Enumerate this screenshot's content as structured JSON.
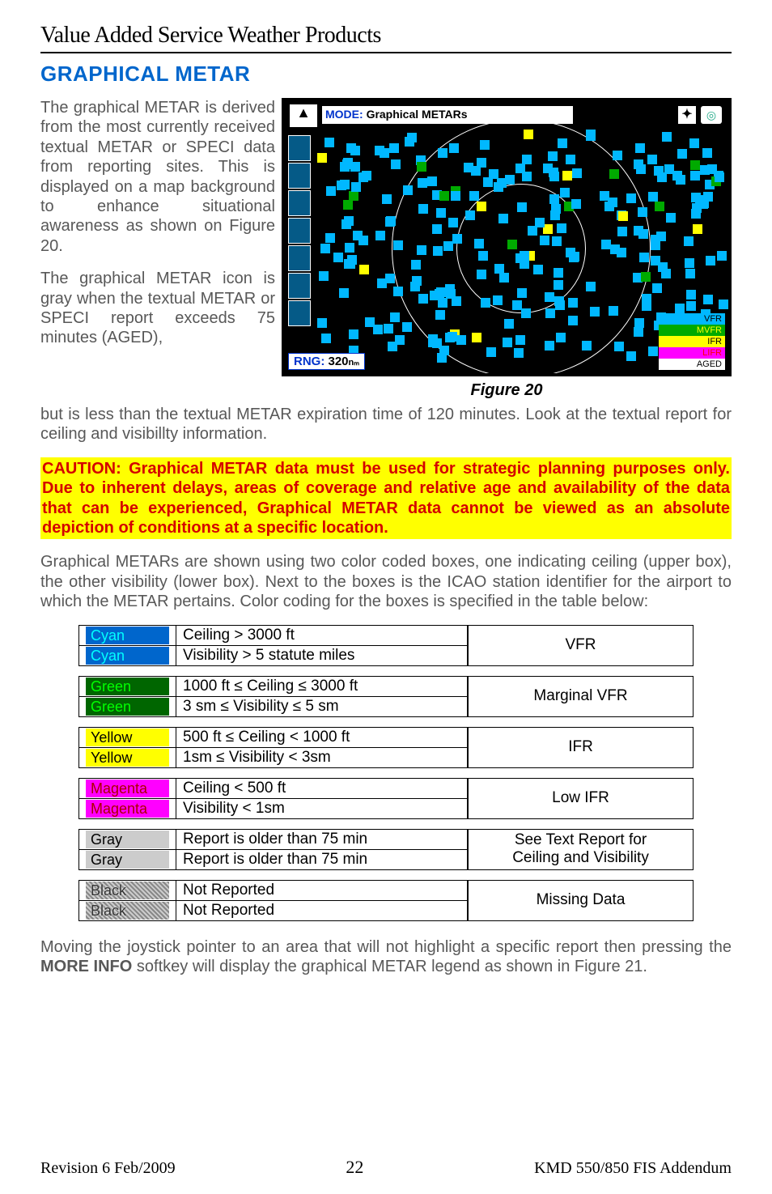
{
  "header": {
    "title": "Value Added Service Weather Products"
  },
  "section": {
    "title": "GRAPHICAL METAR"
  },
  "para1": "The graphical METAR is derived from the most currently received textual METAR or SPECI data from reporting sites. This is displayed on a map background to enhance situational awareness as shown on Figure 20.",
  "para2": "The graphical METAR icon is gray when the textual METAR or SPECI report exceeds 75 minutes (AGED),",
  "para2b": "but is less than the textual METAR expiration time of 120 minutes. Look at the textual report for ceiling and visibillty information.",
  "caution": "CAUTION: Graphical METAR data must be used for strategic planning purposes only. Due to inherent delays, areas of coverage and relative age and availability of the data that can be experienced, Graphical METAR data cannot be viewed as an absolute depiction of conditions at a specific location.",
  "para3": "Graphical METARs are shown using two color coded boxes, one indicating ceiling (upper box), the other visibility (lower box). Next to the boxes is the ICAO station identifier for the airport to which the METAR pertains. Color coding for the boxes is specified in the table below:",
  "para4_a": "Moving the joystick pointer to an area that will not highlight a specific report then pressing the ",
  "para4_bold": "MORE INFO",
  "para4_b": " softkey will display the graphical METAR legend as shown in Figure 21.",
  "figure": {
    "mode_prefix": "MODE:",
    "mode_label": "Graphical METARs",
    "rng_prefix": "RNG:",
    "rng_value": "320",
    "rng_unit": "nₘ",
    "caption": "Figure 20",
    "legend": {
      "vfr": {
        "label": "VFR",
        "bg": "#00b8ff",
        "fg": "#000000"
      },
      "mvfr": {
        "label": "MVFR",
        "bg": "#00aa00",
        "fg": "#ffff00"
      },
      "ifr": {
        "label": "IFR",
        "bg": "#ffff00",
        "fg": "#000000"
      },
      "lifr": {
        "label": "LIFR",
        "bg": "#ff00ff",
        "fg": "#ff0000"
      },
      "aged": {
        "label": "AGED",
        "bg": "#ffffff",
        "fg": "#000000"
      }
    }
  },
  "tables": {
    "groups": [
      {
        "rows": [
          {
            "label": "Cyan",
            "bg": "#0066cc",
            "fg": "#00ffff",
            "cond": "Ceiling  > 3000 ft"
          },
          {
            "label": "Cyan",
            "bg": "#0066cc",
            "fg": "#00ffff",
            "cond": "Visibility > 5 statute miles"
          }
        ],
        "status": "VFR"
      },
      {
        "rows": [
          {
            "label": "Green",
            "bg": "#006600",
            "fg": "#00ff00",
            "cond": "1000 ft ≤ Ceiling ≤ 3000 ft"
          },
          {
            "label": "Green",
            "bg": "#006600",
            "fg": "#00ff00",
            "cond": "3 sm ≤ Visibility ≤ 5 sm"
          }
        ],
        "status": "Marginal VFR"
      },
      {
        "rows": [
          {
            "label": "Yellow",
            "bg": "#ffff00",
            "fg": "#000000",
            "cond": "500 ft ≤ Ceiling < 1000 ft"
          },
          {
            "label": "Yellow",
            "bg": "#ffff00",
            "fg": "#000000",
            "cond": "1sm ≤ Visibility < 3sm"
          }
        ],
        "status": "IFR"
      },
      {
        "rows": [
          {
            "label": "Magenta",
            "bg": "#ff00ff",
            "fg": "#aa0000",
            "cond": "Ceiling < 500 ft"
          },
          {
            "label": "Magenta",
            "bg": "#ff00ff",
            "fg": "#aa0000",
            "cond": "Visibility < 1sm"
          }
        ],
        "status": "Low IFR"
      },
      {
        "rows": [
          {
            "label": "Gray",
            "bg": "#cccccc",
            "fg": "#000000",
            "cond": "Report is older than 75 min"
          },
          {
            "label": "Gray",
            "bg": "#cccccc",
            "fg": "#000000",
            "cond": "Report is older than 75 min"
          }
        ],
        "status_lines": [
          "See Text Report for",
          "Ceiling and Visibility"
        ]
      },
      {
        "rows": [
          {
            "label": "Black",
            "hatch": true,
            "cond": "Not Reported"
          },
          {
            "label": "Black",
            "hatch": true,
            "cond": "Not Reported"
          }
        ],
        "status": "Missing Data"
      }
    ]
  },
  "footer": {
    "revision": "Revision 6  Feb/2009",
    "page": "22",
    "doc": "KMD 550/850 FIS Addendum"
  }
}
